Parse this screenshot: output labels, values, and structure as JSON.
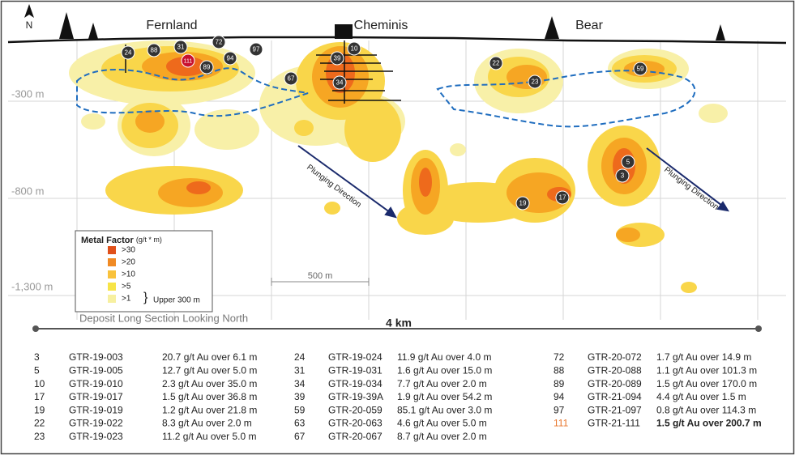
{
  "compass": "N",
  "sites": [
    "Fernland",
    "Cheminis",
    "Bear"
  ],
  "depth_labels": [
    "-300 m",
    "-800 m",
    "-1,300 m"
  ],
  "directions": [
    "Plunging Direction",
    "Plunging Direction"
  ],
  "scale_bar": "500 m",
  "length_bar": "4 km",
  "caption": "Deposit Long Section Looking North",
  "legend": {
    "title": "Metal Factor",
    "units": "(g/t * m)",
    "classes": [
      ">30",
      ">20",
      ">10",
      ">5",
      ">1"
    ],
    "note": "Upper 300 m"
  },
  "holes": [
    "24",
    "88",
    "31",
    "72",
    "111",
    "89",
    "94",
    "97",
    "10",
    "39",
    "34",
    "67",
    "22",
    "23",
    "59",
    "5",
    "3",
    "19",
    "17"
  ],
  "table": {
    "rows": [
      [
        "3",
        "GTR-19-003",
        "20.7 g/t Au over 6.1 m"
      ],
      [
        "5",
        "GTR-19-005",
        "12.7 g/t Au over 5.0 m"
      ],
      [
        "10",
        "GTR-19-010",
        "2.3 g/t Au over 35.0 m"
      ],
      [
        "17",
        "GTR-19-017",
        "1.5 g/t Au over 36.8 m"
      ],
      [
        "19",
        "GTR-19-019",
        "1.2 g/t Au over 21.8 m"
      ],
      [
        "22",
        "GTR-19-022",
        "8.3 g/t Au over 2.0 m"
      ],
      [
        "23",
        "GTR-19-023",
        "11.2 g/t Au over 5.0 m"
      ],
      [
        "24",
        "GTR-19-024",
        "11.9 g/t Au over 4.0 m"
      ],
      [
        "31",
        "GTR-19-031",
        "1.6 g/t Au over 15.0 m"
      ],
      [
        "34",
        "GTR-19-034",
        "7.7 g/t Au over 2.0 m"
      ],
      [
        "39",
        "GTR-19-39A",
        "1.9 g/t Au over 54.2 m"
      ],
      [
        "59",
        "GTR-20-059",
        "85.1 g/t  Au over 3.0 m"
      ],
      [
        "63",
        "GTR-20-063",
        "4.6 g/t Au over 5.0 m"
      ],
      [
        "67",
        "GTR-20-067",
        "8.7 g/t Au over 2.0 m"
      ],
      [
        "72",
        "GTR-20-072",
        "1.7 g/t Au over 14.9 m"
      ],
      [
        "88",
        "GTR-20-088",
        "1.1 g/t Au over 101.3 m"
      ],
      [
        "89",
        "GTR-20-089",
        "1.5 g/t Au over 170.0 m"
      ],
      [
        "94",
        "GTR-21-094",
        "4.4 g/t Au over 1.5 m"
      ],
      [
        "97",
        "GTR-21-097",
        "0.8 g/t Au over 114.3 m"
      ],
      [
        "111",
        "GTR-21-111",
        "1.5 g/t Au over 200.7 m"
      ]
    ]
  }
}
